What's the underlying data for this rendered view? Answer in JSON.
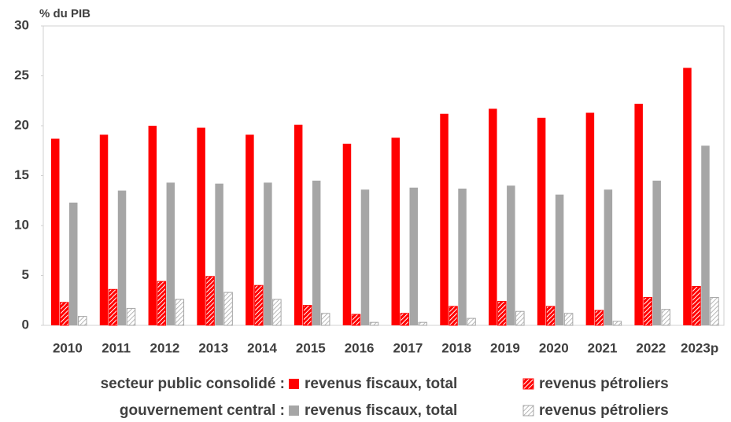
{
  "chart_data": {
    "type": "bar",
    "title": "% du PIB",
    "categories": [
      "2010",
      "2011",
      "2012",
      "2013",
      "2014",
      "2015",
      "2016",
      "2017",
      "2018",
      "2019",
      "2020",
      "2021",
      "2022",
      "2023p"
    ],
    "legend_groups": [
      "secteur public consolidé :",
      "gouvernement central :"
    ],
    "series": [
      {
        "name": "revenus fiscaux, total",
        "color": "#ff0000",
        "hatch": false,
        "values": [
          18.7,
          19.1,
          20.0,
          19.8,
          19.1,
          20.1,
          18.2,
          18.8,
          21.2,
          21.7,
          20.8,
          21.3,
          22.2,
          25.8
        ]
      },
      {
        "name": "revenus pétroliers",
        "color": "#ff0000",
        "hatch": true,
        "values": [
          2.3,
          3.6,
          4.4,
          4.9,
          4.0,
          2.0,
          1.1,
          1.2,
          1.9,
          2.4,
          1.9,
          1.5,
          2.8,
          3.9
        ]
      },
      {
        "name": "revenus fiscaux, total",
        "color": "#a6a6a6",
        "hatch": false,
        "values": [
          12.3,
          13.5,
          14.3,
          14.2,
          14.3,
          14.5,
          13.6,
          13.8,
          13.7,
          14.0,
          13.1,
          13.6,
          14.5,
          18.0
        ]
      },
      {
        "name": "revenus pétroliers",
        "color": "#a6a6a6",
        "hatch": true,
        "values": [
          0.9,
          1.7,
          2.6,
          3.3,
          2.6,
          1.2,
          0.3,
          0.3,
          0.7,
          1.4,
          1.2,
          0.4,
          1.6,
          2.8
        ]
      }
    ],
    "ylim": [
      0,
      30
    ],
    "yticks": [
      0,
      5,
      10,
      15,
      20,
      25,
      30
    ],
    "grid": false
  }
}
